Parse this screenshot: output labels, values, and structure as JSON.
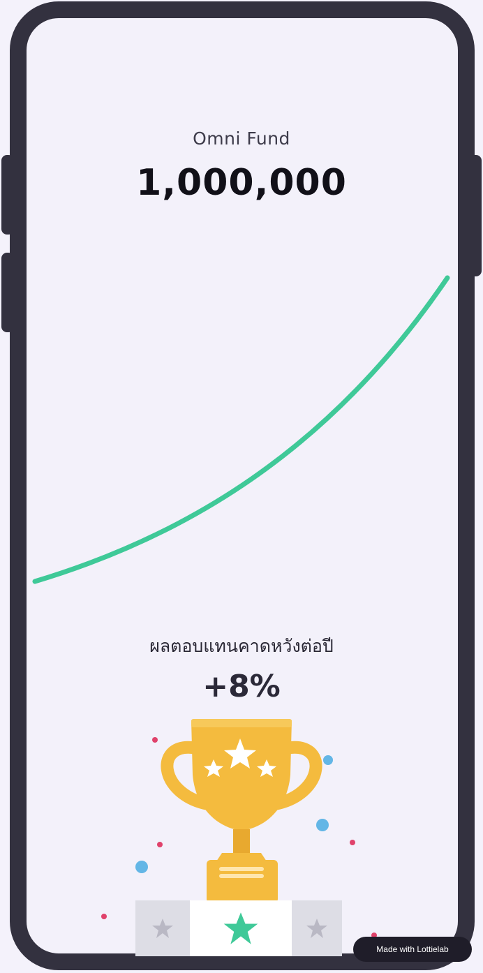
{
  "fund": {
    "name": "Omni Fund",
    "value": "1,000,000"
  },
  "expected_return": {
    "label": "ผลตอบแทนคาดหวังต่อปี",
    "value": "+8%"
  },
  "badge": {
    "text": "Made with Lottielab"
  },
  "colors": {
    "curve": "#3fc998",
    "trophy": "#f4bb3e",
    "frame": "#33313f",
    "star_active": "#3fc998",
    "star_inactive": "#b9b8c4"
  },
  "icons": {
    "trophy": "trophy-icon",
    "stars": [
      "star-icon",
      "star-icon",
      "star-icon"
    ],
    "podium_stars": [
      "star-icon",
      "star-icon",
      "star-icon"
    ]
  }
}
